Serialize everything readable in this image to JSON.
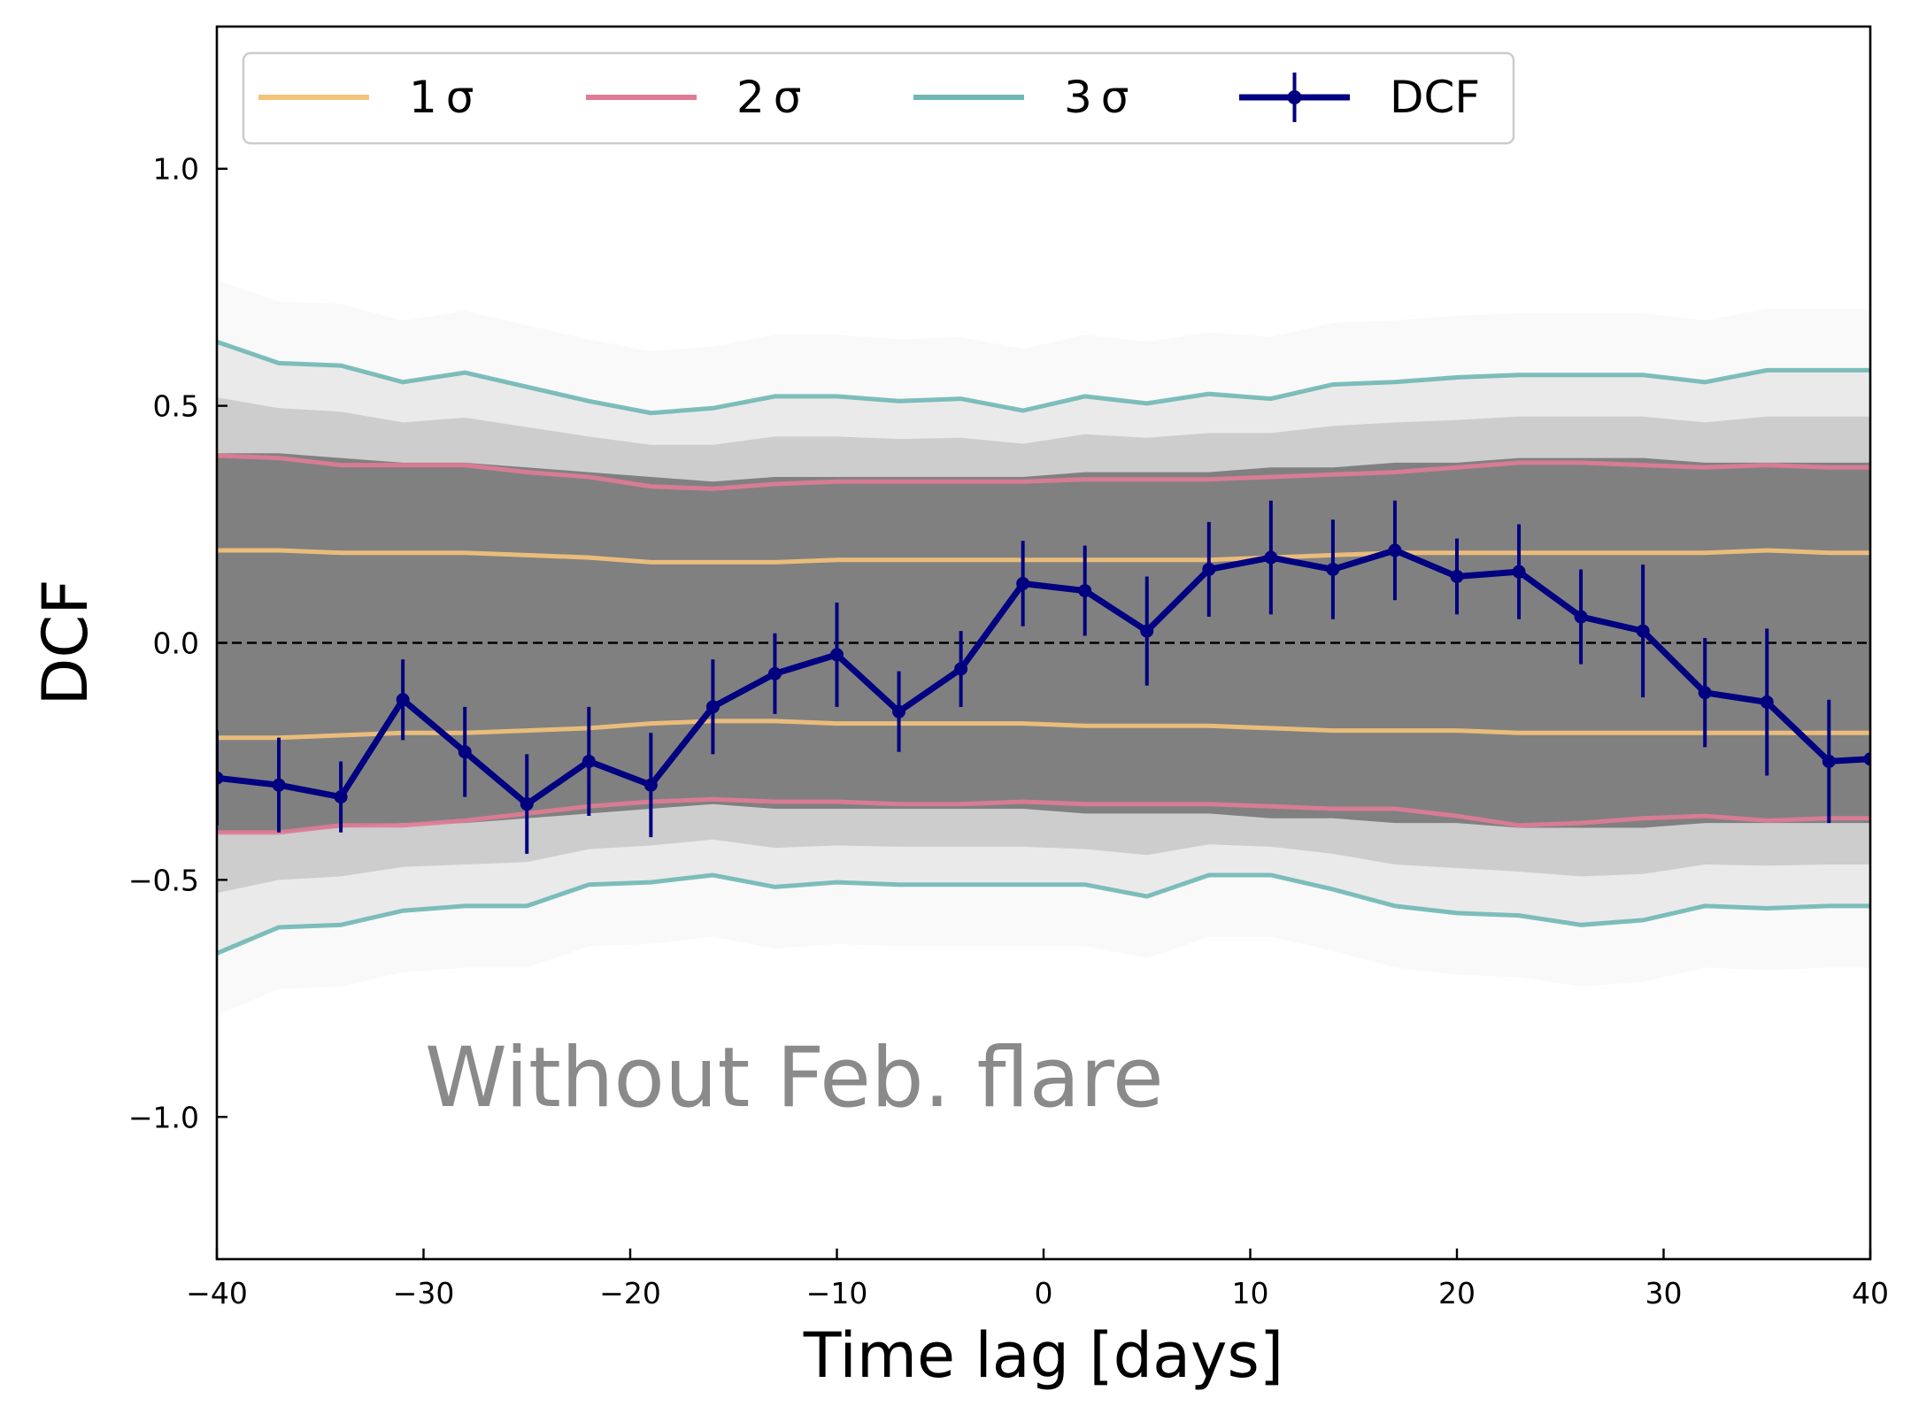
{
  "chart_data": {
    "type": "line",
    "title": "",
    "xlabel": "Time lag [days]",
    "ylabel": "DCF",
    "xlim": [
      -40,
      40
    ],
    "ylim": [
      -1.3,
      1.3
    ],
    "xticks": [
      -40,
      -30,
      -20,
      -10,
      0,
      10,
      20,
      30,
      40
    ],
    "xtick_labels": [
      "−40",
      "−30",
      "−20",
      "−10",
      "0",
      "10",
      "20",
      "30",
      "40"
    ],
    "yticks": [
      1.0,
      0.5,
      0.0,
      -0.5,
      -1.0
    ],
    "ytick_labels": [
      "1.0",
      "0.5",
      "0.0",
      "−0.5",
      "−1.0"
    ],
    "grid": false,
    "zero_line": {
      "y": 0,
      "style": "dashed",
      "color": "#000000"
    },
    "annotation": "Without Feb. flare",
    "legend": {
      "placement": "upper-left",
      "entries": [
        {
          "label": "1 σ",
          "color": "#f5c27a"
        },
        {
          "label": "2 σ",
          "color": "#e07b95"
        },
        {
          "label": "3 σ",
          "color": "#6fb7b4"
        },
        {
          "label": "DCF",
          "color": "#000080"
        }
      ]
    },
    "lag_grid": [
      -40,
      -37,
      -34,
      -31,
      -28,
      -25,
      -22,
      -19,
      -16,
      -13,
      -10,
      -7,
      -4,
      -1,
      2,
      5,
      8,
      11,
      14,
      17,
      20,
      23,
      26,
      29,
      32,
      35,
      38,
      40
    ],
    "simulated_band": {
      "color": "#808080",
      "dense_upper": [
        0.4,
        0.4,
        0.39,
        0.38,
        0.38,
        0.37,
        0.36,
        0.35,
        0.34,
        0.35,
        0.35,
        0.35,
        0.35,
        0.35,
        0.36,
        0.36,
        0.36,
        0.37,
        0.37,
        0.38,
        0.38,
        0.39,
        0.39,
        0.39,
        0.38,
        0.38,
        0.38,
        0.38
      ],
      "dense_lower": [
        -0.4,
        -0.4,
        -0.39,
        -0.38,
        -0.38,
        -0.37,
        -0.36,
        -0.35,
        -0.34,
        -0.35,
        -0.35,
        -0.35,
        -0.35,
        -0.35,
        -0.36,
        -0.36,
        -0.36,
        -0.37,
        -0.37,
        -0.38,
        -0.38,
        -0.39,
        -0.39,
        -0.39,
        -0.38,
        -0.38,
        -0.38,
        -0.38
      ]
    },
    "series": [
      {
        "name": "1 σ",
        "color": "#f5c27a",
        "upper": [
          0.195,
          0.195,
          0.19,
          0.19,
          0.19,
          0.185,
          0.18,
          0.17,
          0.17,
          0.17,
          0.175,
          0.175,
          0.175,
          0.175,
          0.175,
          0.175,
          0.175,
          0.18,
          0.185,
          0.19,
          0.19,
          0.19,
          0.19,
          0.19,
          0.19,
          0.195,
          0.19,
          0.19
        ],
        "lower": [
          -0.2,
          -0.2,
          -0.195,
          -0.19,
          -0.19,
          -0.185,
          -0.18,
          -0.17,
          -0.165,
          -0.165,
          -0.17,
          -0.17,
          -0.17,
          -0.17,
          -0.175,
          -0.175,
          -0.175,
          -0.18,
          -0.185,
          -0.185,
          -0.185,
          -0.19,
          -0.19,
          -0.19,
          -0.19,
          -0.19,
          -0.19,
          -0.19
        ]
      },
      {
        "name": "2 σ",
        "color": "#e07b95",
        "upper": [
          0.395,
          0.39,
          0.375,
          0.375,
          0.375,
          0.36,
          0.35,
          0.33,
          0.325,
          0.335,
          0.34,
          0.34,
          0.34,
          0.34,
          0.345,
          0.345,
          0.345,
          0.35,
          0.355,
          0.36,
          0.37,
          0.38,
          0.38,
          0.375,
          0.37,
          0.375,
          0.37,
          0.37
        ],
        "lower": [
          -0.4,
          -0.4,
          -0.385,
          -0.385,
          -0.375,
          -0.36,
          -0.345,
          -0.335,
          -0.33,
          -0.335,
          -0.335,
          -0.34,
          -0.34,
          -0.335,
          -0.34,
          -0.34,
          -0.34,
          -0.345,
          -0.35,
          -0.35,
          -0.365,
          -0.385,
          -0.38,
          -0.37,
          -0.365,
          -0.375,
          -0.37,
          -0.37
        ]
      },
      {
        "name": "3 σ",
        "color": "#6fb7b4",
        "upper": [
          0.635,
          0.59,
          0.585,
          0.55,
          0.57,
          0.54,
          0.51,
          0.485,
          0.495,
          0.52,
          0.52,
          0.51,
          0.515,
          0.49,
          0.52,
          0.505,
          0.525,
          0.515,
          0.545,
          0.55,
          0.56,
          0.565,
          0.565,
          0.565,
          0.55,
          0.575,
          0.575,
          0.575
        ],
        "lower": [
          -0.655,
          -0.6,
          -0.595,
          -0.565,
          -0.555,
          -0.555,
          -0.51,
          -0.505,
          -0.49,
          -0.515,
          -0.505,
          -0.51,
          -0.51,
          -0.51,
          -0.51,
          -0.535,
          -0.49,
          -0.49,
          -0.52,
          -0.555,
          -0.57,
          -0.575,
          -0.595,
          -0.585,
          -0.555,
          -0.56,
          -0.555,
          -0.555
        ]
      },
      {
        "name": "DCF",
        "color": "#000080",
        "x": [
          -40,
          -37,
          -34,
          -31,
          -28,
          -25,
          -22,
          -19,
          -16,
          -13,
          -10,
          -7,
          -4,
          -1,
          2,
          5,
          8,
          11,
          14,
          17,
          20,
          23,
          26,
          29,
          32,
          35,
          38,
          40
        ],
        "y": [
          -0.285,
          -0.3,
          -0.325,
          -0.12,
          -0.23,
          -0.34,
          -0.25,
          -0.3,
          -0.135,
          -0.065,
          -0.025,
          -0.145,
          -0.055,
          0.125,
          0.11,
          0.025,
          0.155,
          0.18,
          0.155,
          0.195,
          0.14,
          0.15,
          0.055,
          0.025,
          -0.105,
          -0.125,
          -0.25,
          -0.245
        ],
        "yerr": [
          0.1,
          0.1,
          0.075,
          0.085,
          0.095,
          0.105,
          0.115,
          0.11,
          0.1,
          0.085,
          0.11,
          0.085,
          0.08,
          0.09,
          0.095,
          0.115,
          0.1,
          0.12,
          0.105,
          0.105,
          0.08,
          0.1,
          0.1,
          0.14,
          0.115,
          0.155,
          0.13,
          0.0
        ]
      }
    ]
  }
}
